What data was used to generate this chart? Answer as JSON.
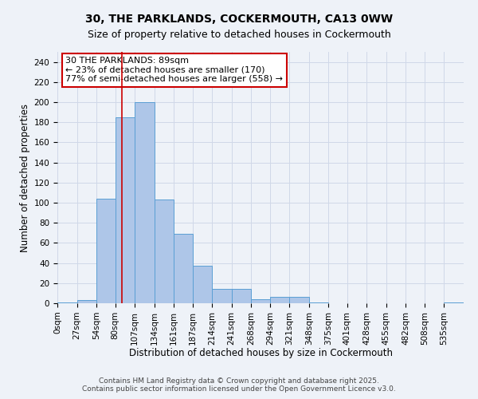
{
  "title1": "30, THE PARKLANDS, COCKERMOUTH, CA13 0WW",
  "title2": "Size of property relative to detached houses in Cockermouth",
  "xlabel": "Distribution of detached houses by size in Cockermouth",
  "ylabel": "Number of detached properties",
  "footer1": "Contains HM Land Registry data © Crown copyright and database right 2025.",
  "footer2": "Contains public sector information licensed under the Open Government Licence v3.0.",
  "bin_labels": [
    "0sqm",
    "27sqm",
    "54sqm",
    "80sqm",
    "107sqm",
    "134sqm",
    "161sqm",
    "187sqm",
    "214sqm",
    "241sqm",
    "268sqm",
    "294sqm",
    "321sqm",
    "348sqm",
    "375sqm",
    "401sqm",
    "428sqm",
    "455sqm",
    "482sqm",
    "508sqm",
    "535sqm"
  ],
  "bar_values": [
    1,
    3,
    104,
    185,
    200,
    103,
    69,
    37,
    14,
    14,
    4,
    6,
    6,
    1,
    0,
    0,
    0,
    0,
    0,
    0,
    1
  ],
  "bar_color": "#aec6e8",
  "bar_edge_color": "#5a9fd4",
  "grid_color": "#d0d8e8",
  "background_color": "#eef2f8",
  "annotation_text": "30 THE PARKLANDS: 89sqm\n← 23% of detached houses are smaller (170)\n77% of semi-detached houses are larger (558) →",
  "annotation_box_color": "#ffffff",
  "annotation_box_edge": "#cc0000",
  "red_line_x": 89,
  "ylim": [
    0,
    250
  ],
  "yticks": [
    0,
    20,
    40,
    60,
    80,
    100,
    120,
    140,
    160,
    180,
    200,
    220,
    240
  ],
  "bin_edges": [
    0,
    27,
    54,
    80,
    107,
    134,
    161,
    187,
    214,
    241,
    268,
    294,
    321,
    348,
    375,
    401,
    428,
    455,
    482,
    508,
    535,
    562
  ],
  "title_fontsize": 10,
  "subtitle_fontsize": 9,
  "axis_fontsize": 8.5,
  "tick_fontsize": 7.5,
  "annot_fontsize": 8,
  "footer_fontsize": 6.5
}
